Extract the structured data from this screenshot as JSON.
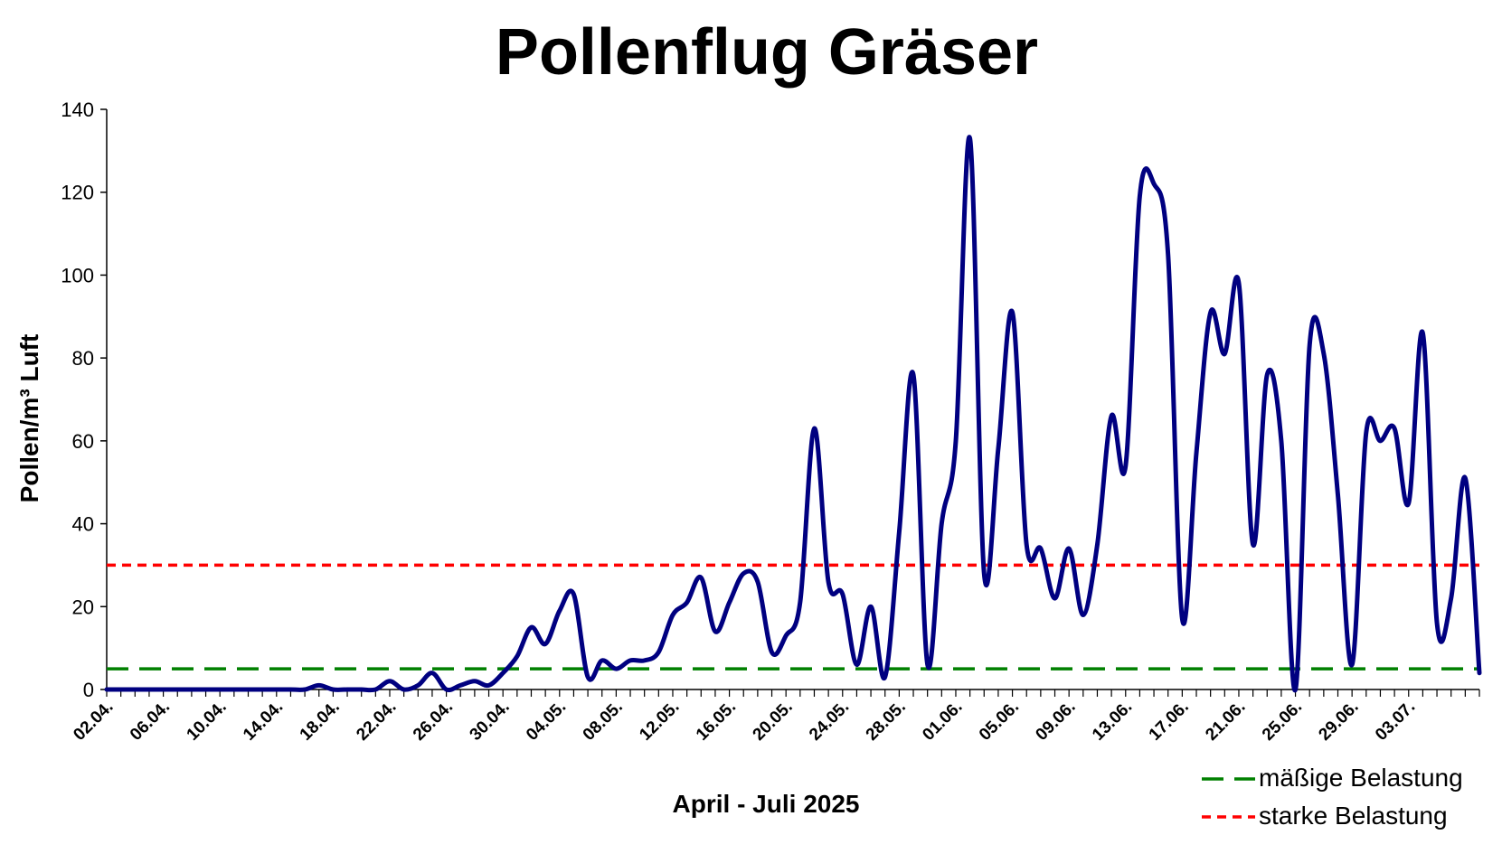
{
  "chart_data": {
    "type": "line",
    "title": "Pollenflug Gräser",
    "xlabel": "April - Juli 2025",
    "ylabel": "Pollen/m³ Luft",
    "ylim": [
      0,
      140
    ],
    "yticks": [
      "0",
      "20",
      "40",
      "60",
      "80",
      "100",
      "120",
      "140"
    ],
    "x_tick_labels": [
      "02.04.",
      "06.04.",
      "10.04.",
      "14.04.",
      "18.04.",
      "22.04.",
      "26.04.",
      "30.04.",
      "04.05.",
      "08.05.",
      "12.05.",
      "16.05.",
      "20.05.",
      "24.05.",
      "28.05.",
      "01.06.",
      "05.06.",
      "09.06.",
      "13.06.",
      "17.06.",
      "21.06.",
      "25.06.",
      "29.06.",
      "03.07."
    ],
    "x_start": "02.04.",
    "x_end": "07.07.",
    "grid": false,
    "legend_position": "bottom-right",
    "series": [
      {
        "name": "",
        "color": "#000080",
        "values": [
          0,
          0,
          0,
          0,
          0,
          0,
          0,
          0,
          0,
          0,
          0,
          0,
          0,
          0,
          0,
          1,
          0,
          0,
          0,
          0,
          2,
          0,
          1,
          4,
          0,
          1,
          2,
          1,
          4,
          8,
          15,
          11,
          19,
          23,
          3,
          7,
          5,
          7,
          7,
          9,
          18,
          21,
          27,
          14,
          21,
          28,
          26,
          9,
          13,
          21,
          63,
          26,
          23,
          6,
          20,
          3,
          38,
          76,
          6,
          40,
          60,
          133,
          28,
          58,
          91,
          35,
          34,
          22,
          34,
          18,
          35,
          66,
          54,
          119,
          122,
          105,
          17,
          57,
          91,
          81,
          98,
          35,
          76,
          60,
          0,
          83,
          81,
          47,
          6,
          62,
          60,
          63,
          45,
          86,
          16,
          22,
          51,
          4
        ]
      },
      {
        "name": "mäßige Belastung",
        "color": "#008000",
        "dash": "long-dash",
        "constant": 5
      },
      {
        "name": "starke Belastung",
        "color": "#ff0000",
        "dash": "short-dash",
        "constant": 30
      }
    ]
  }
}
